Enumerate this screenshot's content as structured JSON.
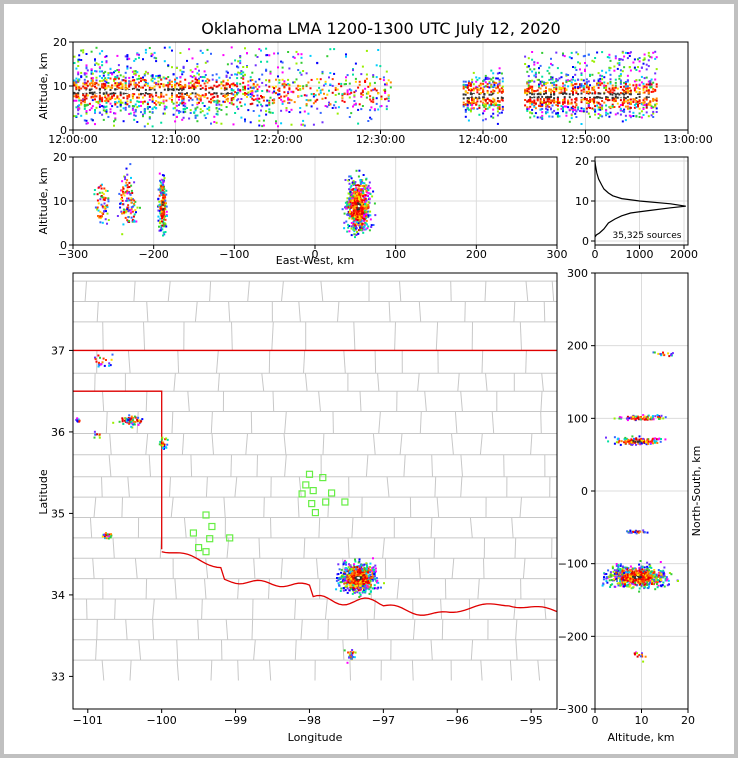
{
  "chart_data": [
    {
      "type": "heatmap",
      "panel": "time-altitude",
      "title": "Oklahoma LMA 1200-1300 UTC July 12, 2020",
      "ylabel": "Altitude, km",
      "ylim": [
        0,
        20
      ],
      "yticks": [
        "0",
        "10",
        "20"
      ],
      "xticks": [
        "12:00:00",
        "12:10:00",
        "12:20:00",
        "12:30:00",
        "12:40:00",
        "12:50:00",
        "13:00:00"
      ],
      "xlim_minutes": [
        0,
        60
      ],
      "activity_bursts": [
        {
          "t_start": 0,
          "t_end": 31,
          "alt_min": 1,
          "alt_max": 19,
          "peak_alt": 9
        },
        {
          "t_start": 38,
          "t_end": 42,
          "alt_min": 5,
          "alt_max": 12,
          "peak_alt": 8
        },
        {
          "t_start": 44,
          "t_end": 57,
          "alt_min": 3,
          "alt_max": 18,
          "peak_alt": 8
        }
      ]
    },
    {
      "type": "heatmap",
      "panel": "east-west-altitude",
      "xlabel": "East-West, km",
      "ylabel": "Altitude, km",
      "xlim": [
        -300,
        300
      ],
      "ylim": [
        0,
        20
      ],
      "xticks": [
        "−300",
        "−200",
        "−100",
        "0",
        "100",
        "200",
        "300"
      ],
      "yticks": [
        "0",
        "10",
        "20"
      ],
      "clusters": [
        {
          "x": -265,
          "alt": 10,
          "dx": 8,
          "dalt": 4,
          "n": 60,
          "hot": false
        },
        {
          "x": -233,
          "alt": 10,
          "dx": 9,
          "dalt": 5,
          "n": 110,
          "hot": false
        },
        {
          "x": -190,
          "alt": 9,
          "dx": 4,
          "dalt": 5,
          "n": 200,
          "hot": true
        },
        {
          "x": 53,
          "alt": 9,
          "dx": 12,
          "dalt": 5,
          "n": 700,
          "hot": true
        }
      ]
    },
    {
      "type": "line",
      "panel": "altitude-histogram",
      "xlim": [
        0,
        2000
      ],
      "ylim": [
        0,
        20
      ],
      "xticks": [
        "0",
        "1000",
        "2000"
      ],
      "yticks": [
        "0",
        "10",
        "20"
      ],
      "annotation": "35,325 sources",
      "x": [
        0,
        30,
        100,
        200,
        300,
        450,
        600,
        800,
        1200,
        1700,
        2040,
        1700,
        1000,
        600,
        400,
        300,
        200,
        150,
        80,
        40,
        10,
        0
      ],
      "y": [
        1,
        1.5,
        2,
        3,
        4.5,
        5.5,
        6.3,
        7,
        7.6,
        8.3,
        8.7,
        9.3,
        10,
        10.6,
        11.3,
        12,
        13,
        14,
        15.5,
        17,
        19,
        20
      ]
    },
    {
      "type": "scatter",
      "panel": "plan-view-map",
      "xlabel": "Longitude",
      "ylabel": "Latitude",
      "xlim": [
        -101.2,
        -94.65
      ],
      "ylim": [
        32.6,
        37.95
      ],
      "xticks": [
        "−101",
        "−100",
        "−99",
        "−98",
        "−97",
        "−96",
        "−95"
      ],
      "yticks": [
        "33",
        "34",
        "35",
        "36",
        "37"
      ],
      "stations_lonlat": [
        [
          -98.0,
          35.48
        ],
        [
          -97.82,
          35.44
        ],
        [
          -98.05,
          35.35
        ],
        [
          -97.95,
          35.28
        ],
        [
          -98.1,
          35.24
        ],
        [
          -97.7,
          35.25
        ],
        [
          -97.78,
          35.14
        ],
        [
          -97.52,
          35.14
        ],
        [
          -97.97,
          35.12
        ],
        [
          -97.92,
          35.01
        ],
        [
          -99.4,
          34.98
        ],
        [
          -99.32,
          34.84
        ],
        [
          -99.57,
          34.76
        ],
        [
          -99.35,
          34.69
        ],
        [
          -99.08,
          34.7
        ],
        [
          -99.5,
          34.58
        ],
        [
          -99.4,
          34.53
        ]
      ],
      "clusters": [
        {
          "lon": -97.35,
          "lat": 34.22,
          "dlon": 0.2,
          "dlat": 0.14,
          "n": 700,
          "hot": true
        },
        {
          "lon": -100.42,
          "lat": 36.15,
          "dlon": 0.15,
          "dlat": 0.05,
          "n": 60,
          "hot": false
        },
        {
          "lon": -101.15,
          "lat": 36.15,
          "dlon": 0.05,
          "dlat": 0.03,
          "n": 8,
          "hot": false
        },
        {
          "lon": -100.9,
          "lat": 35.98,
          "dlon": 0.05,
          "dlat": 0.03,
          "n": 8,
          "hot": false
        },
        {
          "lon": -99.98,
          "lat": 35.88,
          "dlon": 0.04,
          "dlat": 0.06,
          "n": 25,
          "hot": true
        },
        {
          "lon": -100.8,
          "lat": 36.9,
          "dlon": 0.12,
          "dlat": 0.08,
          "n": 20,
          "hot": false
        },
        {
          "lon": -100.76,
          "lat": 34.74,
          "dlon": 0.07,
          "dlat": 0.03,
          "n": 20,
          "hot": false
        },
        {
          "lon": -97.45,
          "lat": 33.28,
          "dlon": 0.05,
          "dlat": 0.07,
          "n": 25,
          "hot": false
        }
      ],
      "boundary_color": "#e00000",
      "counties_color": "#c8c8c8"
    },
    {
      "type": "heatmap",
      "panel": "north-south-altitude",
      "xlabel": "Altitude, km",
      "ylabel": "North-South, km",
      "xlim": [
        0,
        20
      ],
      "ylim": [
        -300,
        300
      ],
      "xticks": [
        "0",
        "10",
        "20"
      ],
      "yticks": [
        "−300",
        "−200",
        "−100",
        "0",
        "100",
        "200",
        "300"
      ],
      "clusters": [
        {
          "alt": 9,
          "y": -117,
          "dalt": 5,
          "dy": 12,
          "n": 700,
          "hot": true
        },
        {
          "alt": 9,
          "y": 70,
          "dalt": 5,
          "dy": 4,
          "n": 120,
          "hot": true
        },
        {
          "alt": 10,
          "y": 102,
          "dalt": 4,
          "dy": 3,
          "n": 80,
          "hot": false
        },
        {
          "alt": 9,
          "y": -55,
          "dalt": 2,
          "dy": 2,
          "n": 30,
          "hot": false
        },
        {
          "alt": 15,
          "y": 190,
          "dalt": 2,
          "dy": 4,
          "n": 15,
          "hot": false
        },
        {
          "alt": 10,
          "y": -225,
          "dalt": 2,
          "dy": 5,
          "n": 12,
          "hot": false
        }
      ]
    }
  ]
}
